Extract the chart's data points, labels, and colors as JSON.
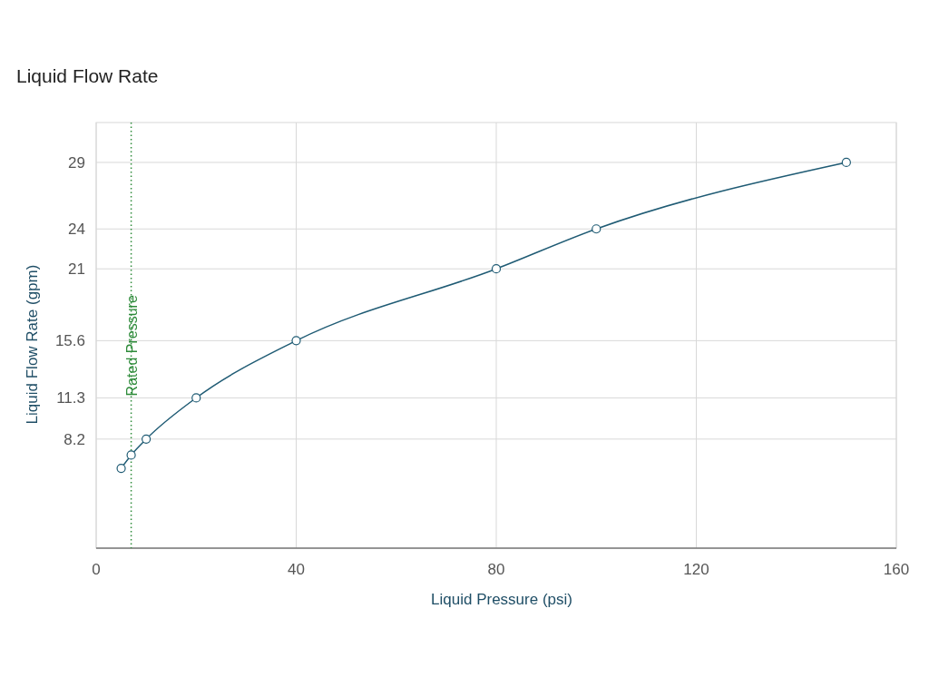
{
  "chart_data": {
    "type": "line",
    "title": "Liquid Flow Rate",
    "xlabel": "Liquid Pressure (psi)",
    "ylabel": "Liquid Flow Rate (gpm)",
    "x": [
      5,
      7,
      10,
      20,
      40,
      80,
      100,
      150
    ],
    "series": [
      {
        "color": "#1f5b74",
        "values": [
          6.0,
          7.0,
          8.2,
          11.3,
          15.6,
          21,
          24,
          29
        ]
      }
    ],
    "xlim": [
      0,
      160
    ],
    "xticks": [
      0,
      40,
      80,
      120,
      160
    ],
    "ylim": [
      0,
      32
    ],
    "yticks": [
      8.2,
      11.3,
      15.6,
      21,
      24,
      29
    ],
    "grid": true,
    "marker": "circle",
    "line_style": "solid",
    "ref_lines": [
      {
        "axis": "x",
        "value": 7,
        "label": "Rated Pressure",
        "color": "#2e8b3a",
        "line_style": "dotted"
      }
    ]
  }
}
